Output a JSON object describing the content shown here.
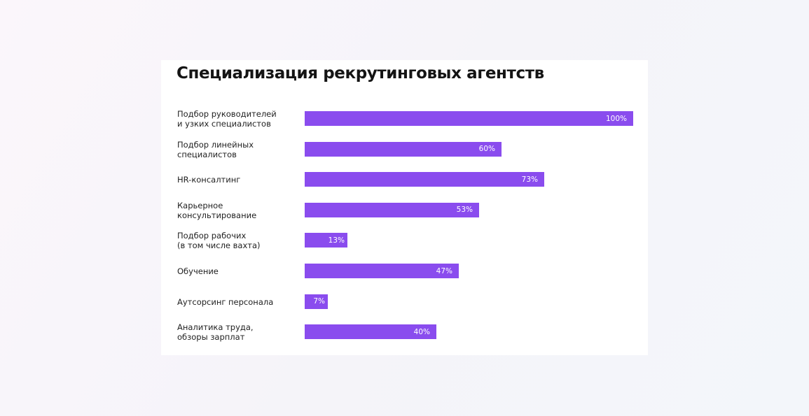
{
  "colors": {
    "bar": "#8a4cee",
    "background": "#ffffff",
    "text": "#222222"
  },
  "chart_data": {
    "type": "bar",
    "orientation": "horizontal",
    "title": "Специализация рекрутинговых агентств",
    "categories": [
      [
        "Подбор руководителей",
        "и узких специалистов"
      ],
      [
        "Подбор линейных",
        "специалистов"
      ],
      [
        "HR-консалтинг"
      ],
      [
        "Карьерное",
        "консультирование"
      ],
      [
        "Подбор рабочих",
        "(в том числе вахта)"
      ],
      [
        "Обучение"
      ],
      [
        "Аутсорсинг персонала"
      ],
      [
        "Аналитика труда,",
        "обзоры зарплат"
      ]
    ],
    "values": [
      100,
      60,
      73,
      53,
      13,
      47,
      7,
      40
    ],
    "data_labels": [
      "100%",
      "60%",
      "73%",
      "53%",
      "13%",
      "47%",
      "7%",
      "40%"
    ],
    "xlim": [
      0,
      100
    ],
    "grid": false,
    "legend": "none"
  }
}
